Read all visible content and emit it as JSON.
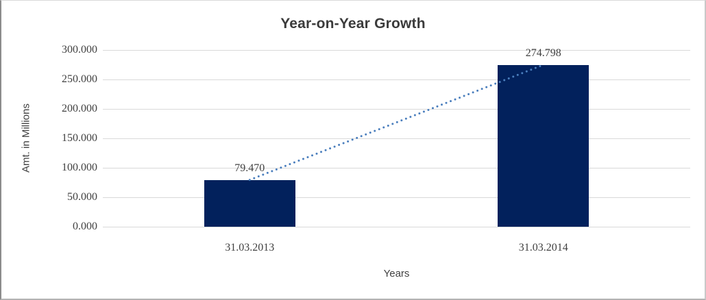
{
  "chart_data": {
    "type": "bar",
    "title": "Year-on-Year Growth",
    "xlabel": "Years",
    "ylabel": "Amt. in Millions",
    "categories": [
      "31.03.2013",
      "31.03.2014"
    ],
    "series": [
      {
        "name": "Amt. in Millions",
        "values": [
          79.47,
          274.798
        ]
      }
    ],
    "value_labels": [
      "79.470",
      "274.798"
    ],
    "ylim": [
      0,
      300
    ],
    "ytick_step": 50,
    "ytick_labels": [
      "0.000",
      "50.000",
      "100.000",
      "150.000",
      "200.000",
      "250.000",
      "300.000"
    ],
    "grid": true,
    "legend_position": "none",
    "trendline": {
      "style": "dotted",
      "color": "#4a7ebd",
      "connects": [
        "bar-top-31.03.2013",
        "bar-top-31.03.2014"
      ]
    },
    "colors": {
      "bar_fill": "#02215c",
      "gridline": "#d9d9d9",
      "axis_text": "#404040",
      "title_text": "#3b3b3b"
    }
  }
}
